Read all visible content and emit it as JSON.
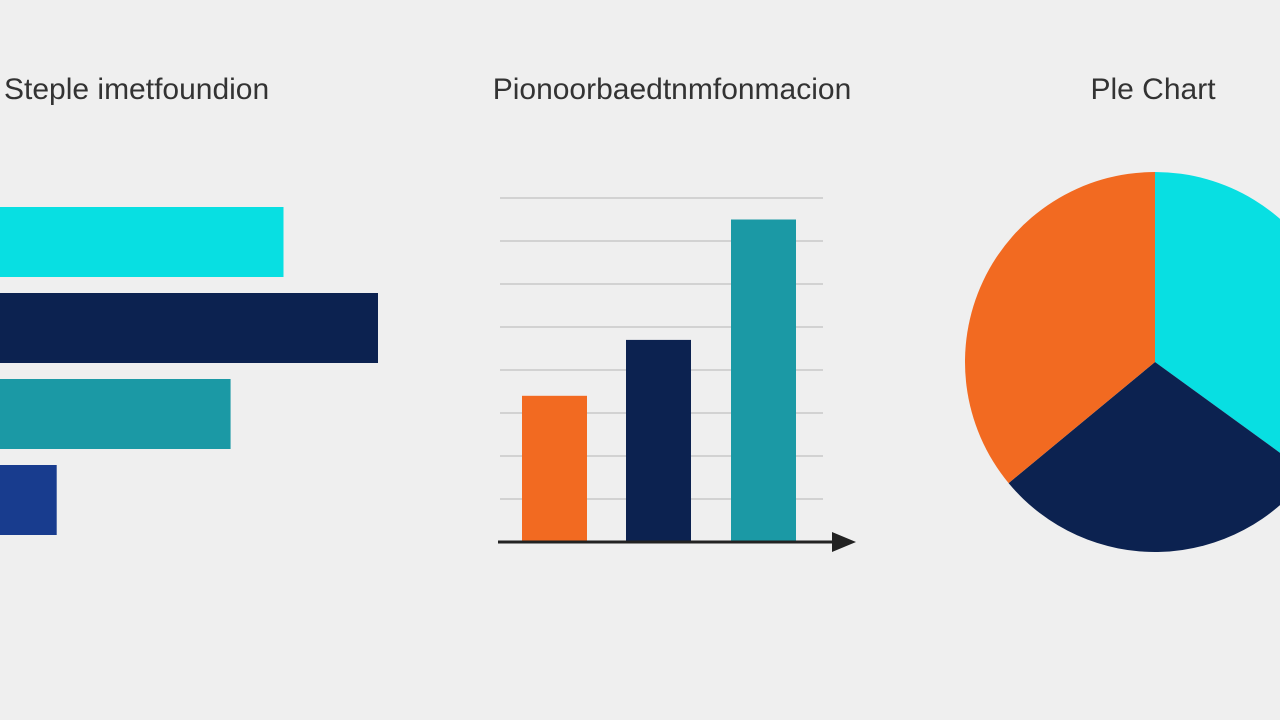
{
  "chart_data": [
    {
      "type": "hbar",
      "title": "Steple imetfoundion",
      "categories": [
        null,
        null,
        null,
        null
      ],
      "values": [
        75,
        100,
        61,
        15
      ],
      "colors": [
        "#08dfe2",
        "#0c2250",
        "#1b99a5",
        "#183c8e"
      ],
      "xlim": [
        0,
        100
      ]
    },
    {
      "type": "bar",
      "title": "Pionoorbaedtnmfonmacion",
      "categories": [
        null,
        null,
        null
      ],
      "values": [
        3.4,
        4.7,
        7.5
      ],
      "colors": [
        "#f26a21",
        "#0c2250",
        "#1b99a5"
      ],
      "ylim": [
        0,
        8
      ],
      "yticks": [
        1,
        2,
        3,
        4,
        5,
        6,
        7,
        8
      ],
      "grid": true
    },
    {
      "type": "pie",
      "title": "Ple Chart",
      "categories": [
        null,
        null,
        null
      ],
      "values": [
        35,
        29,
        36
      ],
      "colors": [
        "#08dfe2",
        "#0c2250",
        "#f26a21"
      ]
    }
  ]
}
